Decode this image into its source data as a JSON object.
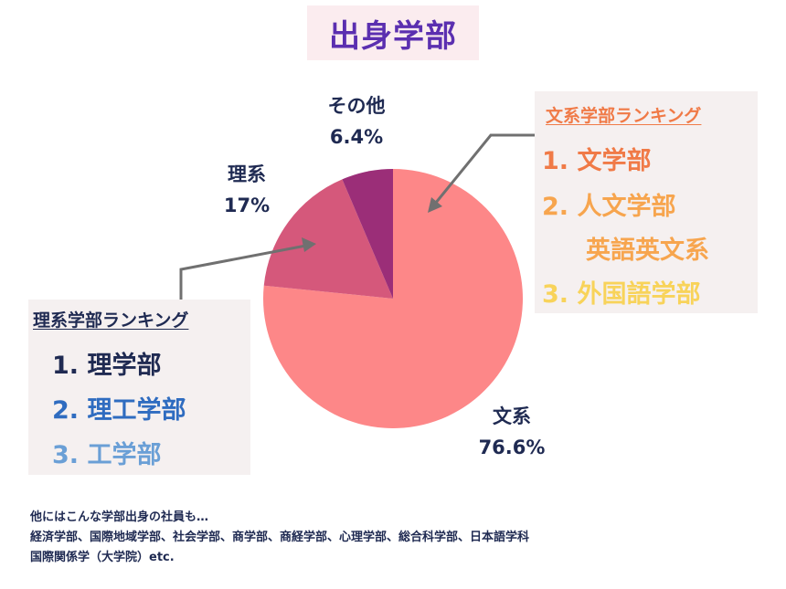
{
  "title": "出身学部",
  "chart_data": {
    "type": "pie",
    "title": "出身学部",
    "slices": [
      {
        "label": "文系",
        "value": 76.6,
        "display": "76.6%",
        "color": "#fd8788"
      },
      {
        "label": "理系",
        "value": 17,
        "display": "17%",
        "color": "#d5587b"
      },
      {
        "label": "その他",
        "value": 6.4,
        "display": "6.4%",
        "color": "#9b2e78"
      }
    ],
    "start": "12 o'clock",
    "direction": "clockwise"
  },
  "science_ranking": {
    "heading": "理系学部ランキング",
    "items": [
      "1. 理学部",
      "2. 理工学部",
      "3. 工学部"
    ],
    "colors": [
      "#1f2a52",
      "#2f6cc0",
      "#6a9fd6"
    ]
  },
  "humanities_ranking": {
    "heading": "文系学部ランキング",
    "items": [
      "1. 文学部",
      "2. 人文学部",
      "英語英文系",
      "3. 外国語学部"
    ],
    "colors": [
      "#f07a47",
      "#f7a54e",
      "#f7a54e",
      "#f8d35a"
    ]
  },
  "footer": {
    "line1": "他にはこんな学部出身の社員も…",
    "line2": "経済学部、国際地域学部、社会学部、商学部、商経学部、心理学部、総合科学部、日本語学科",
    "line3": "国際関係学（大学院）etc."
  }
}
